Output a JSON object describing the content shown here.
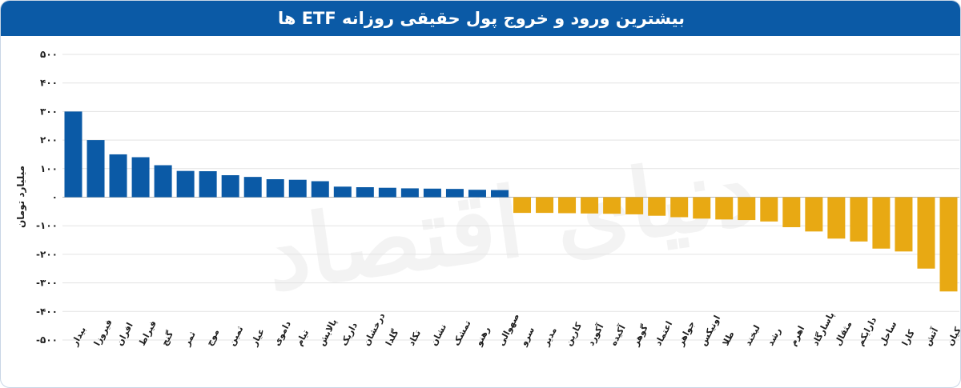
{
  "chart_data": {
    "type": "bar",
    "title": "بیشترین ورود و خروج پول حقیقی روزانه ETF ها",
    "ylabel": "میلیارد تومان",
    "xlabel": "",
    "ylim": [
      -500,
      500
    ],
    "yticks": [
      500,
      400,
      300,
      200,
      100,
      0,
      -100,
      -200,
      -300,
      -400,
      -500
    ],
    "ytick_labels": [
      "۵۰۰",
      "۴۰۰",
      "۳۰۰",
      "۲۰۰",
      "۱۰۰",
      "۰",
      "-۱۰۰",
      "-۲۰۰",
      "-۳۰۰",
      "-۴۰۰",
      "-۵۰۰"
    ],
    "grid": true,
    "positive_color": "#0b5aa6",
    "negative_color": "#e8a913",
    "watermark": "دنیای اقتصاد",
    "categories": [
      "بیدار",
      "فیروزا",
      "افران",
      "فیراط",
      "گنج",
      "ثمر",
      "موج",
      "ثمین",
      "عیار",
      "داموی",
      "تیام",
      "پالایش",
      "داریک",
      "درخشان",
      "گلدا",
      "تکاد",
      "نشان",
      "تمشک",
      "رهنو",
      "صهوالی",
      "سرو",
      "مدیر",
      "کارین",
      "آکورد",
      "آکیده",
      "گوهر",
      "اعتماد",
      "جواهر",
      "اونیکس",
      "طلا",
      "لبخند",
      "رشد",
      "اهرم",
      "پاسارگاد",
      "مثقال",
      "دارایکم",
      "ساحل",
      "کارا",
      "آتش",
      "کیان"
    ],
    "values": [
      300,
      200,
      150,
      140,
      112,
      92,
      91,
      77,
      71,
      63,
      61,
      56,
      37,
      35,
      33,
      31,
      30,
      29,
      26,
      25,
      -55,
      -55,
      -56,
      -57,
      -58,
      -60,
      -65,
      -70,
      -75,
      -78,
      -80,
      -85,
      -105,
      -120,
      -145,
      -155,
      -180,
      -190,
      -250,
      -330
    ]
  }
}
